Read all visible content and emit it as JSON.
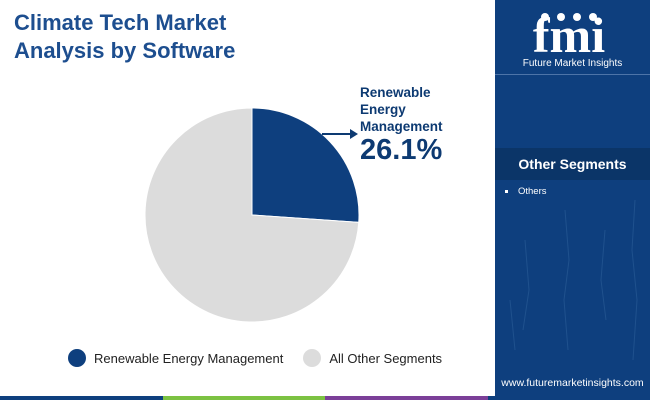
{
  "title": "Climate Tech Market Analysis by Software",
  "chart_data": {
    "type": "pie",
    "title": "Climate Tech Market Analysis by Software",
    "slices": [
      {
        "label": "Renewable Energy Management",
        "value": 26.1,
        "color": "#0e3f7e"
      },
      {
        "label": "All Other Segments",
        "value": 73.9,
        "color": "#dcdcdc"
      }
    ],
    "callout": {
      "label": "Renewable Energy Management",
      "value_text": "26.1%"
    },
    "legend": {
      "position": "bottom"
    }
  },
  "legend": [
    {
      "label": "Renewable Energy Management",
      "color": "#0e3f7e"
    },
    {
      "label": "All Other Segments",
      "color": "#dcdcdc"
    }
  ],
  "sidebar": {
    "logo_text": "fmi",
    "logo_subtitle": "Future Market Insights",
    "heading": "Other Segments",
    "items": [
      "Others"
    ],
    "background": "#0e3f7e"
  },
  "footer": {
    "url": "www.futuremarketinsights.com",
    "bar_colors": [
      "#0e3f7e",
      "#7cc242",
      "#7b3f98",
      "#0e3f7e"
    ]
  }
}
